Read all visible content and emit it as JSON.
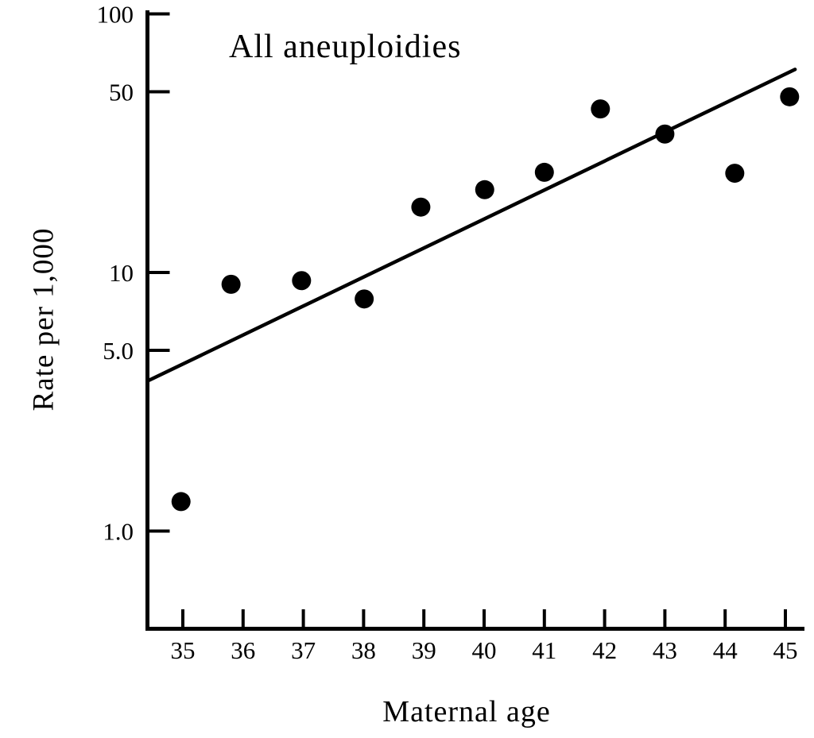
{
  "figure": {
    "background": "#ffffff",
    "ink_color": "#000000"
  },
  "chart_data": {
    "type": "scatter",
    "title": "All aneuploidies",
    "xlabel": "Maternal age",
    "ylabel": "Rate per 1,000",
    "y_scale": "log",
    "grid": false,
    "legend": "none",
    "x_range": [
      34.4,
      45.35
    ],
    "y_range": [
      0.42,
      103
    ],
    "x_ticks": [
      35,
      36,
      37,
      38,
      39,
      40,
      41,
      42,
      43,
      44,
      45
    ],
    "y_ticks": [
      {
        "value": 100,
        "label": "100"
      },
      {
        "value": 50,
        "label": "50"
      },
      {
        "value": 10,
        "label": "10"
      },
      {
        "value": 5,
        "label": "5.0"
      },
      {
        "value": 1,
        "label": "1.0"
      }
    ],
    "points": [
      {
        "age": 35,
        "rate": 1.3,
        "age_plotted": 34.97
      },
      {
        "age": 36,
        "rate": 9.0,
        "age_plotted": 35.8
      },
      {
        "age": 37,
        "rate": 9.3,
        "age_plotted": 36.97
      },
      {
        "age": 38,
        "rate": 7.9,
        "age_plotted": 38.01
      },
      {
        "age": 39,
        "rate": 17.9,
        "age_plotted": 38.95
      },
      {
        "age": 40,
        "rate": 20.9,
        "age_plotted": 40.01
      },
      {
        "age": 41,
        "rate": 24.4,
        "age_plotted": 41.0
      },
      {
        "age": 42,
        "rate": 42.9,
        "age_plotted": 41.93
      },
      {
        "age": 43,
        "rate": 34.3,
        "age_plotted": 43.0
      },
      {
        "age": 44,
        "rate": 24.2,
        "age_plotted": 44.16
      },
      {
        "age": 45,
        "rate": 47.8,
        "age_plotted": 45.07
      }
    ],
    "trend_line": {
      "x1": 34.41,
      "y1": 3.8,
      "x2": 45.16,
      "y2": 61.0
    },
    "marker": {
      "shape": "filled-circle",
      "color": "#000000",
      "radius_px": 12
    }
  }
}
